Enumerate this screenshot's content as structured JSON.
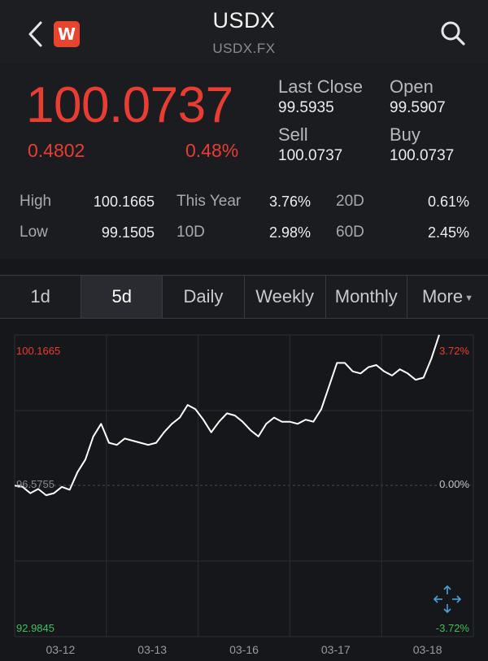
{
  "header": {
    "title": "USDX",
    "subtitle": "USDX.FX",
    "logo_letter": "W"
  },
  "quote": {
    "price": "100.0737",
    "change": "0.4802",
    "change_pct": "0.48%",
    "last_close_label": "Last Close",
    "last_close": "99.5935",
    "open_label": "Open",
    "open": "99.5907",
    "sell_label": "Sell",
    "sell": "100.0737",
    "buy_label": "Buy",
    "buy": "100.0737"
  },
  "stats": {
    "high_label": "High",
    "high": "100.1665",
    "low_label": "Low",
    "low": "99.1505",
    "this_year_label": "This Year",
    "this_year": "3.76%",
    "d10_label": "10D",
    "d10": "2.98%",
    "d20_label": "20D",
    "d20": "0.61%",
    "d60_label": "60D",
    "d60": "2.45%"
  },
  "tabs": [
    {
      "label": "1d"
    },
    {
      "label": "5d",
      "active": true
    },
    {
      "label": "Daily"
    },
    {
      "label": "Weekly"
    },
    {
      "label": "Monthly"
    },
    {
      "label": "More"
    }
  ],
  "colors": {
    "up": "#e83d33",
    "down": "#3fbf5a",
    "line": "#ffffff",
    "grid": "#2d2e33"
  },
  "chart_data": {
    "type": "line",
    "series": [
      {
        "values": [
          96.58,
          96.55,
          96.4,
          96.5,
          96.35,
          96.4,
          96.55,
          96.48,
          96.9,
          97.2,
          97.75,
          98.05,
          97.6,
          97.55,
          97.7,
          97.65,
          97.6,
          97.55,
          97.6,
          97.85,
          98.05,
          98.2,
          98.5,
          98.4,
          98.15,
          97.85,
          98.1,
          98.3,
          98.25,
          98.1,
          97.9,
          97.75,
          98.05,
          98.2,
          98.1,
          98.1,
          98.05,
          98.15,
          98.1,
          98.4,
          98.95,
          99.5,
          99.5,
          99.3,
          99.25,
          99.4,
          99.45,
          99.3,
          99.2,
          99.35,
          99.25,
          99.1,
          99.15,
          99.6,
          100.17
        ]
      }
    ],
    "y_max_label": "100.1665",
    "y_mid_label": "96.5755",
    "y_min_label": "92.9845",
    "pct_max_label": "3.72%",
    "pct_mid_label": "0.00%",
    "pct_min_label": "-3.72%",
    "ylim": [
      92.9845,
      100.1665
    ],
    "x_tick_labels": [
      "03-12",
      "03-13",
      "03-16",
      "03-17",
      "03-18"
    ],
    "grid": true
  }
}
